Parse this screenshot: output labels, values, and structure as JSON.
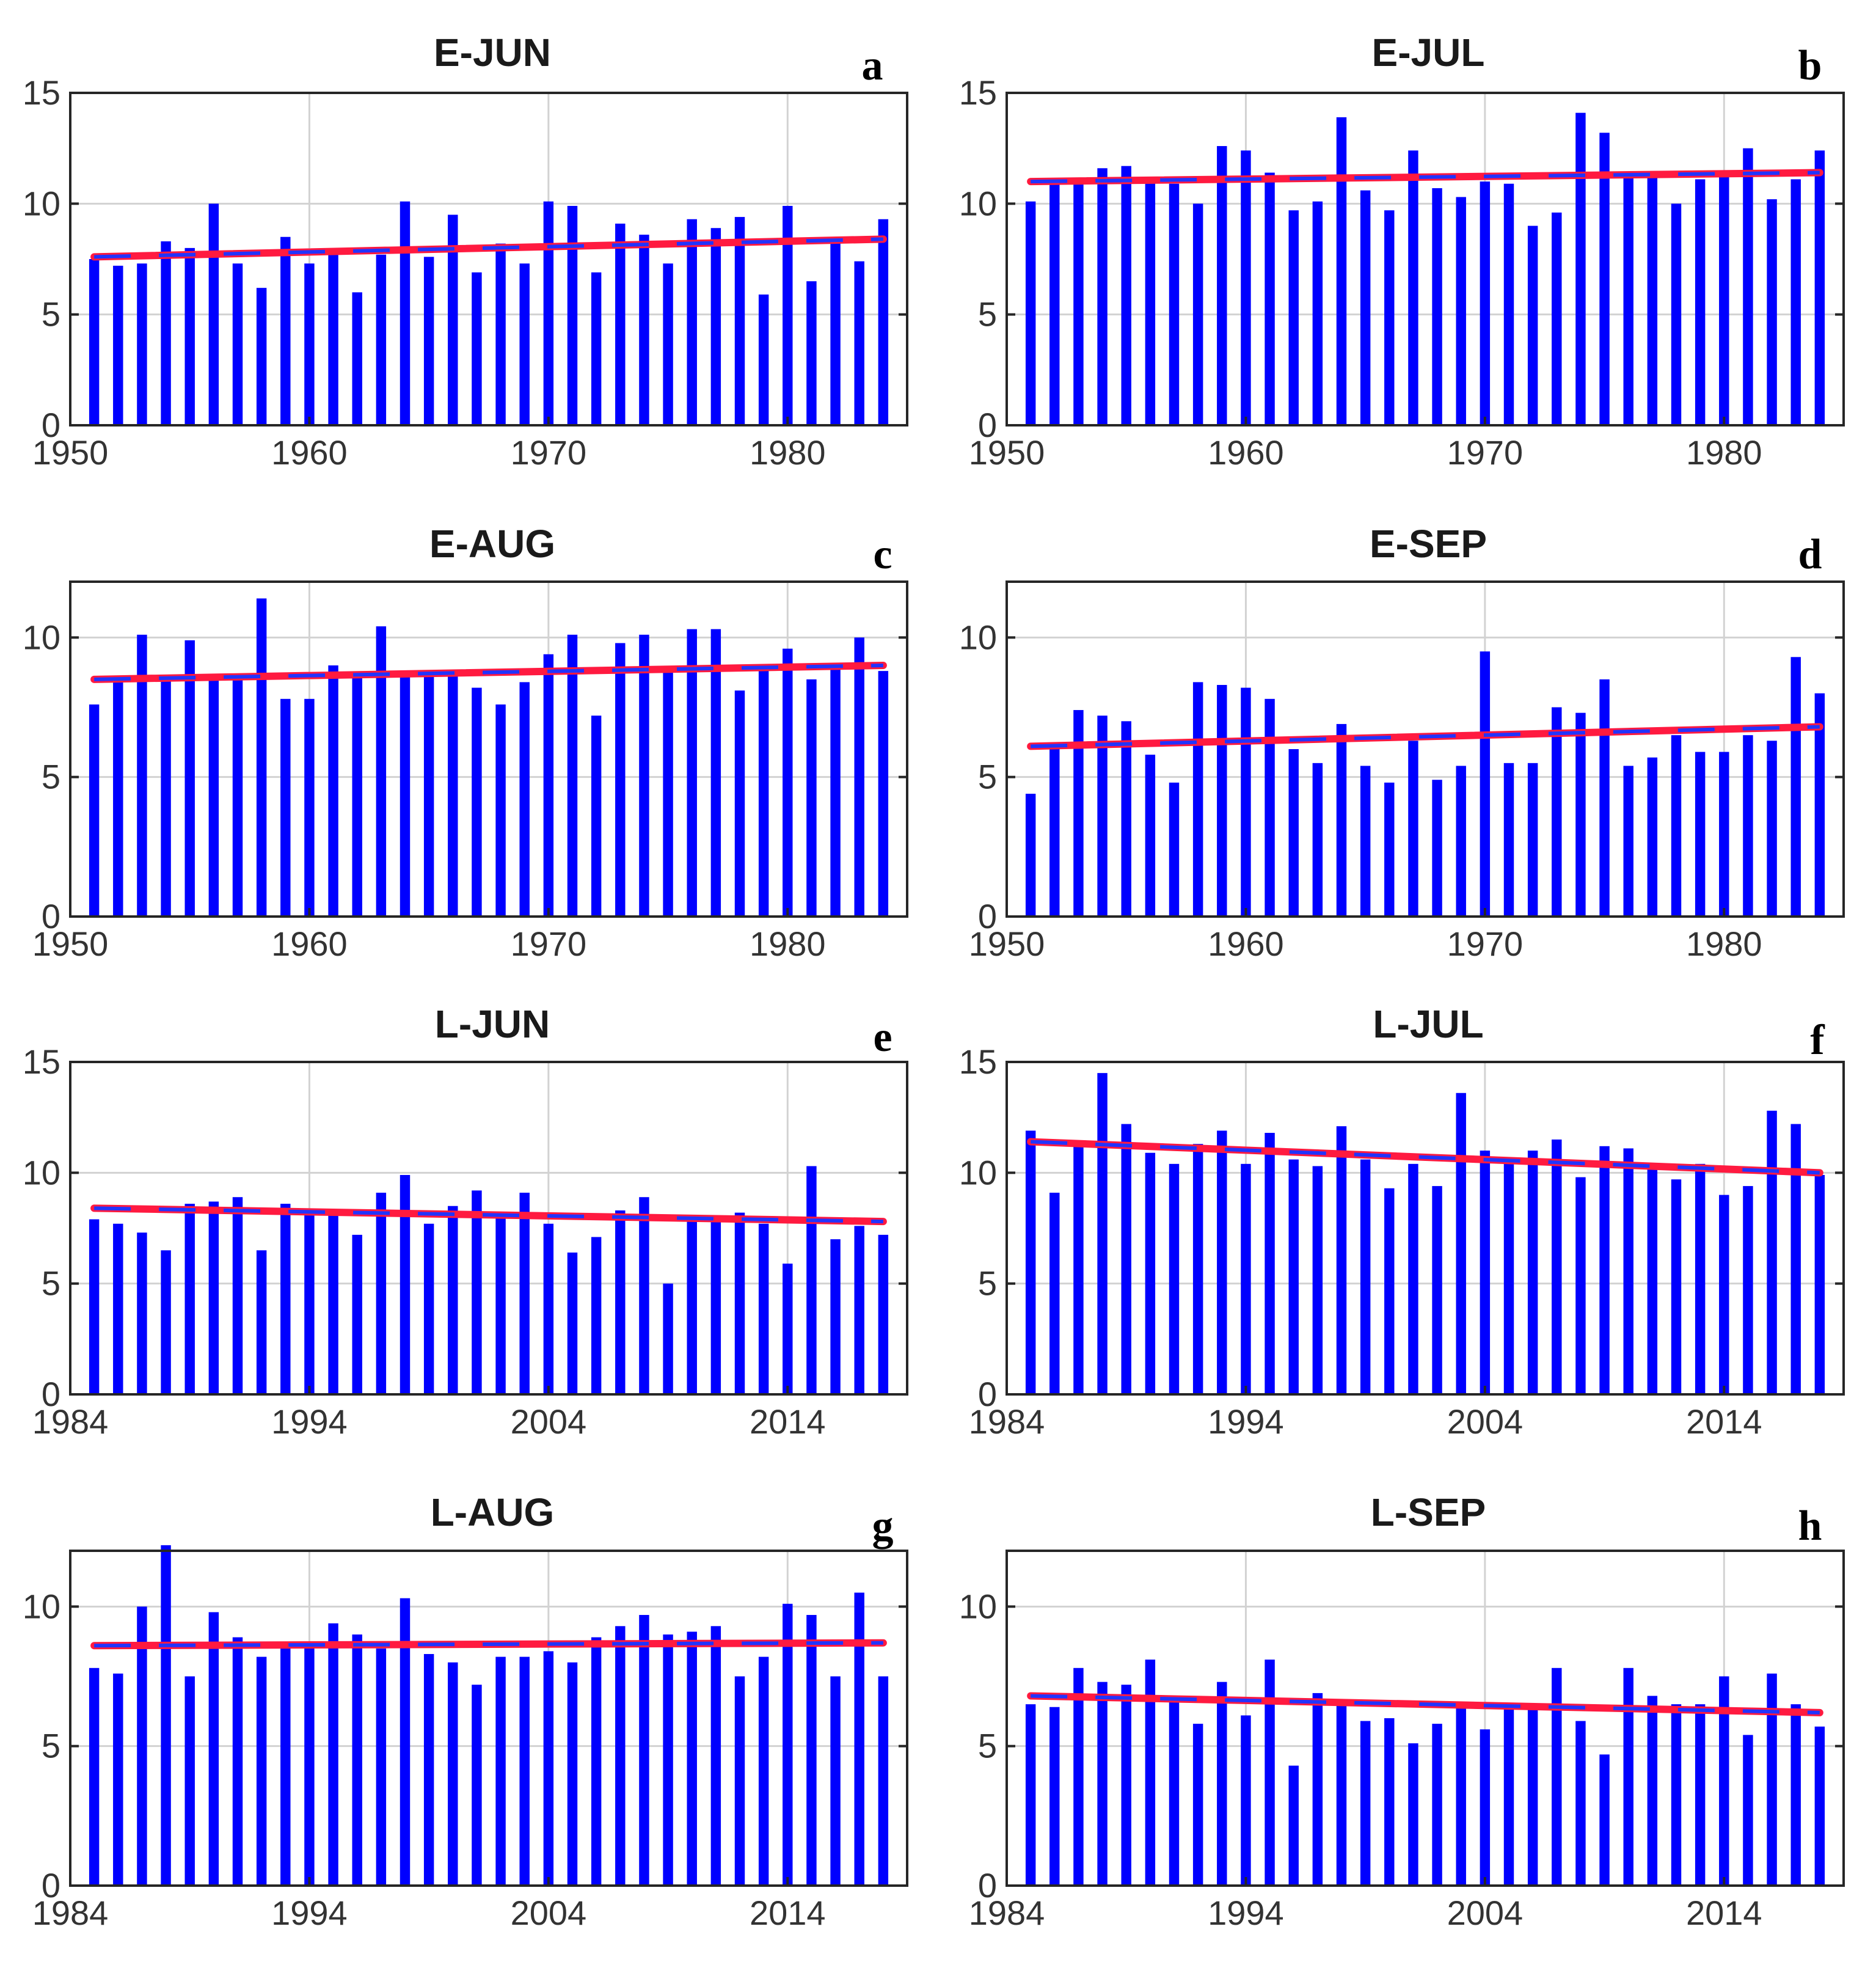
{
  "chart_data": [
    {
      "panel": "a",
      "title": "E-JUN",
      "type": "bar",
      "xlim": [
        1950,
        1985
      ],
      "ylim": [
        0,
        15
      ],
      "xticks": [
        1950,
        1960,
        1970,
        1980
      ],
      "yticks": [
        0,
        5,
        10,
        15
      ],
      "grid": true,
      "x": [
        1951,
        1952,
        1953,
        1954,
        1955,
        1956,
        1957,
        1958,
        1959,
        1960,
        1961,
        1962,
        1963,
        1964,
        1965,
        1966,
        1967,
        1968,
        1969,
        1970,
        1971,
        1972,
        1973,
        1974,
        1975,
        1976,
        1977,
        1978,
        1979,
        1980,
        1981,
        1982,
        1983,
        1984
      ],
      "values": [
        7.5,
        7.2,
        7.3,
        8.3,
        8.0,
        10.0,
        7.3,
        6.2,
        8.5,
        7.3,
        7.9,
        6.0,
        7.7,
        10.1,
        7.6,
        9.5,
        6.9,
        8.2,
        7.3,
        10.1,
        9.9,
        6.9,
        9.1,
        8.6,
        7.3,
        9.3,
        8.9,
        9.4,
        5.9,
        9.9,
        6.5,
        8.3,
        7.4,
        9.3
      ],
      "trend": [
        7.6,
        8.4
      ],
      "colors": {
        "bars": "#0000ff",
        "trend_fit": "#ff1a40",
        "trend_dash": "#2233ff",
        "grid": "#d2d2d2"
      }
    },
    {
      "panel": "b",
      "title": "E-JUL",
      "type": "bar",
      "xlim": [
        1950,
        1985
      ],
      "ylim": [
        0,
        15
      ],
      "xticks": [
        1950,
        1960,
        1970,
        1980
      ],
      "yticks": [
        0,
        5,
        10,
        15
      ],
      "grid": true,
      "x": [
        1951,
        1952,
        1953,
        1954,
        1955,
        1956,
        1957,
        1958,
        1959,
        1960,
        1961,
        1962,
        1963,
        1964,
        1965,
        1966,
        1967,
        1968,
        1969,
        1970,
        1971,
        1972,
        1973,
        1974,
        1975,
        1976,
        1977,
        1978,
        1979,
        1980,
        1981,
        1982,
        1983,
        1984
      ],
      "values": [
        10.1,
        11.0,
        11.0,
        11.6,
        11.7,
        11.2,
        10.9,
        10.0,
        12.6,
        12.4,
        11.4,
        9.7,
        10.1,
        13.9,
        10.6,
        9.7,
        12.4,
        10.7,
        10.3,
        11.0,
        10.9,
        9.0,
        9.6,
        14.1,
        13.2,
        11.2,
        11.2,
        10.0,
        11.1,
        11.5,
        12.5,
        10.2,
        11.1,
        12.4
      ],
      "trend": [
        11.0,
        11.4
      ],
      "colors": {
        "bars": "#0000ff",
        "trend_fit": "#ff1a40",
        "trend_dash": "#2233ff",
        "grid": "#d2d2d2"
      }
    },
    {
      "panel": "c",
      "title": "E-AUG",
      "type": "bar",
      "xlim": [
        1950,
        1985
      ],
      "ylim": [
        0,
        12
      ],
      "xticks": [
        1950,
        1960,
        1970,
        1980
      ],
      "yticks": [
        0,
        5,
        10
      ],
      "grid": true,
      "x": [
        1951,
        1952,
        1953,
        1954,
        1955,
        1956,
        1957,
        1958,
        1959,
        1960,
        1961,
        1962,
        1963,
        1964,
        1965,
        1966,
        1967,
        1968,
        1969,
        1970,
        1971,
        1972,
        1973,
        1974,
        1975,
        1976,
        1977,
        1978,
        1979,
        1980,
        1981,
        1982,
        1983,
        1984
      ],
      "values": [
        7.6,
        8.5,
        10.1,
        8.6,
        9.9,
        8.6,
        8.5,
        11.4,
        7.8,
        7.8,
        9.0,
        8.7,
        10.4,
        8.6,
        8.8,
        8.7,
        8.2,
        7.6,
        8.4,
        9.4,
        10.1,
        7.2,
        9.8,
        10.1,
        8.9,
        10.3,
        10.3,
        8.1,
        8.9,
        9.6,
        8.5,
        9.0,
        10.0,
        8.8
      ],
      "trend": [
        8.5,
        9.0
      ],
      "colors": {
        "bars": "#0000ff",
        "trend_fit": "#ff1a40",
        "trend_dash": "#2233ff",
        "grid": "#d2d2d2"
      }
    },
    {
      "panel": "d",
      "title": "E-SEP",
      "type": "bar",
      "xlim": [
        1950,
        1985
      ],
      "ylim": [
        0,
        12
      ],
      "xticks": [
        1950,
        1960,
        1970,
        1980
      ],
      "yticks": [
        0,
        5,
        10
      ],
      "grid": true,
      "x": [
        1951,
        1952,
        1953,
        1954,
        1955,
        1956,
        1957,
        1958,
        1959,
        1960,
        1961,
        1962,
        1963,
        1964,
        1965,
        1966,
        1967,
        1968,
        1969,
        1970,
        1971,
        1972,
        1973,
        1974,
        1975,
        1976,
        1977,
        1978,
        1979,
        1980,
        1981,
        1982,
        1983,
        1984
      ],
      "values": [
        4.4,
        6.1,
        7.4,
        7.2,
        7.0,
        5.8,
        4.8,
        8.4,
        8.3,
        8.2,
        7.8,
        6.0,
        5.5,
        6.9,
        5.4,
        4.8,
        6.3,
        4.9,
        5.4,
        9.5,
        5.5,
        5.5,
        7.5,
        7.3,
        8.5,
        5.4,
        5.7,
        6.5,
        5.9,
        5.9,
        6.5,
        6.3,
        9.3,
        8.0
      ],
      "trend": [
        6.1,
        6.8
      ],
      "colors": {
        "bars": "#0000ff",
        "trend_fit": "#ff1a40",
        "trend_dash": "#2233ff",
        "grid": "#d2d2d2"
      }
    },
    {
      "panel": "e",
      "title": "L-JUN",
      "type": "bar",
      "xlim": [
        1984,
        2019
      ],
      "ylim": [
        0,
        15
      ],
      "xticks": [
        1984,
        1994,
        2004,
        2014
      ],
      "yticks": [
        0,
        5,
        10,
        15
      ],
      "grid": true,
      "x": [
        1985,
        1986,
        1987,
        1988,
        1989,
        1990,
        1991,
        1992,
        1993,
        1994,
        1995,
        1996,
        1997,
        1998,
        1999,
        2000,
        2001,
        2002,
        2003,
        2004,
        2005,
        2006,
        2007,
        2008,
        2009,
        2010,
        2011,
        2012,
        2013,
        2014,
        2015,
        2016,
        2017,
        2018
      ],
      "values": [
        7.9,
        7.7,
        7.3,
        6.5,
        8.6,
        8.7,
        8.9,
        6.5,
        8.6,
        8.2,
        8.2,
        7.2,
        9.1,
        9.9,
        7.7,
        8.5,
        9.2,
        8.0,
        9.1,
        7.7,
        6.4,
        7.1,
        8.3,
        8.9,
        5.0,
        7.8,
        7.9,
        8.2,
        7.7,
        5.9,
        10.3,
        7.0,
        7.6,
        7.2
      ],
      "trend": [
        8.4,
        7.8
      ],
      "colors": {
        "bars": "#0000ff",
        "trend_fit": "#ff1a40",
        "trend_dash": "#2233ff",
        "grid": "#d2d2d2"
      }
    },
    {
      "panel": "f",
      "title": "L-JUL",
      "type": "bar",
      "xlim": [
        1984,
        2019
      ],
      "ylim": [
        0,
        15
      ],
      "xticks": [
        1984,
        1994,
        2004,
        2014
      ],
      "yticks": [
        0,
        5,
        10,
        15
      ],
      "grid": true,
      "x": [
        1985,
        1986,
        1987,
        1988,
        1989,
        1990,
        1991,
        1992,
        1993,
        1994,
        1995,
        1996,
        1997,
        1998,
        1999,
        2000,
        2001,
        2002,
        2003,
        2004,
        2005,
        2006,
        2007,
        2008,
        2009,
        2010,
        2011,
        2012,
        2013,
        2014,
        2015,
        2016,
        2017,
        2018
      ],
      "values": [
        11.9,
        9.1,
        11.3,
        14.5,
        12.2,
        10.9,
        10.4,
        11.3,
        11.9,
        10.4,
        11.8,
        10.6,
        10.3,
        12.1,
        10.6,
        9.3,
        10.4,
        9.4,
        13.6,
        11.0,
        10.5,
        11.0,
        11.5,
        9.8,
        11.2,
        11.1,
        10.4,
        9.7,
        10.4,
        9.0,
        9.4,
        12.8,
        12.2,
        9.9
      ],
      "trend": [
        11.4,
        10.0
      ],
      "colors": {
        "bars": "#0000ff",
        "trend_fit": "#ff1a40",
        "trend_dash": "#2233ff",
        "grid": "#d2d2d2"
      }
    },
    {
      "panel": "g",
      "title": "L-AUG",
      "type": "bar",
      "xlim": [
        1984,
        2019
      ],
      "ylim": [
        0,
        12
      ],
      "xticks": [
        1984,
        1994,
        2004,
        2014
      ],
      "yticks": [
        0,
        5,
        10
      ],
      "grid": true,
      "x": [
        1985,
        1986,
        1987,
        1988,
        1989,
        1990,
        1991,
        1992,
        1993,
        1994,
        1995,
        1996,
        1997,
        1998,
        1999,
        2000,
        2001,
        2002,
        2003,
        2004,
        2005,
        2006,
        2007,
        2008,
        2009,
        2010,
        2011,
        2012,
        2013,
        2014,
        2015,
        2016,
        2017,
        2018
      ],
      "values": [
        7.8,
        7.6,
        10.0,
        12.2,
        7.5,
        9.8,
        8.9,
        8.2,
        8.6,
        8.5,
        9.4,
        9.0,
        8.5,
        10.3,
        8.3,
        8.0,
        7.2,
        8.2,
        8.2,
        8.4,
        8.0,
        8.9,
        9.3,
        9.7,
        9.0,
        9.1,
        9.3,
        7.5,
        8.2,
        10.1,
        9.7,
        7.5,
        10.5,
        7.5
      ],
      "trend": [
        8.6,
        8.7
      ],
      "colors": {
        "bars": "#0000ff",
        "trend_fit": "#ff1a40",
        "trend_dash": "#2233ff",
        "grid": "#d2d2d2"
      }
    },
    {
      "panel": "h",
      "title": "L-SEP",
      "type": "bar",
      "xlim": [
        1984,
        2019
      ],
      "ylim": [
        0,
        12
      ],
      "xticks": [
        1984,
        1994,
        2004,
        2014
      ],
      "yticks": [
        0,
        5,
        10
      ],
      "grid": true,
      "x": [
        1985,
        1986,
        1987,
        1988,
        1989,
        1990,
        1991,
        1992,
        1993,
        1994,
        1995,
        1996,
        1997,
        1998,
        1999,
        2000,
        2001,
        2002,
        2003,
        2004,
        2005,
        2006,
        2007,
        2008,
        2009,
        2010,
        2011,
        2012,
        2013,
        2014,
        2015,
        2016,
        2017,
        2018
      ],
      "values": [
        6.5,
        6.4,
        7.8,
        7.3,
        7.2,
        8.1,
        6.8,
        5.8,
        7.3,
        6.1,
        8.1,
        4.3,
        6.9,
        6.6,
        5.9,
        6.0,
        5.1,
        5.8,
        6.5,
        5.6,
        6.4,
        6.5,
        7.8,
        5.9,
        4.7,
        7.8,
        6.8,
        6.5,
        6.5,
        7.5,
        5.4,
        7.6,
        6.5,
        5.7
      ],
      "trend": [
        6.8,
        6.2
      ],
      "colors": {
        "bars": "#0000ff",
        "trend_fit": "#ff1a40",
        "trend_dash": "#2233ff",
        "grid": "#d2d2d2"
      }
    }
  ]
}
